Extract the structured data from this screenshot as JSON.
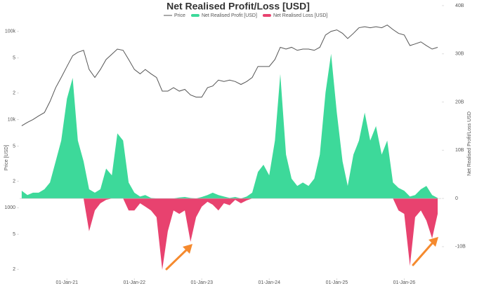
{
  "chart_data": {
    "type": "line-area",
    "title": "Net Realised Profit/Loss [USD]",
    "ylabel": "Price [USD]",
    "y2label": "Net Realised Profit/Loss USD",
    "log_scale_y": true,
    "grid": false,
    "legend": "top",
    "xlim": [
      "2020-04-20",
      "2026-07-20"
    ],
    "xticks": [
      {
        "value": "2021-01-01",
        "label": "01-Jan-21"
      },
      {
        "value": "2022-01-01",
        "label": "01-Jan-22"
      },
      {
        "value": "2023-01-01",
        "label": "01-Jan-23"
      },
      {
        "value": "2024-01-01",
        "label": "01-Jan-24"
      },
      {
        "value": "2025-01-01",
        "label": "01-Jan-25"
      },
      {
        "value": "2026-01-01",
        "label": "01-Jan-26"
      }
    ],
    "ylim": [
      150,
      196000
    ],
    "yticks": [
      {
        "value": 100000,
        "label": "100k"
      },
      {
        "value": 50000,
        "label": "5"
      },
      {
        "value": 20000,
        "label": "2"
      },
      {
        "value": 10000,
        "label": "10k"
      },
      {
        "value": 5000,
        "label": "5"
      },
      {
        "value": 2000,
        "label": "2"
      },
      1000,
      {
        "value": 500,
        "label": "5"
      },
      {
        "value": 200,
        "label": "2"
      }
    ],
    "y2lim": [
      -17,
      40
    ],
    "y2ticks": [
      {
        "value": 40,
        "label": "40B"
      },
      {
        "value": 30,
        "label": "30B"
      },
      {
        "value": 20,
        "label": "20B"
      },
      {
        "value": 10,
        "label": "10B"
      },
      0,
      {
        "value": -10,
        "label": "-10B"
      }
    ],
    "x": [
      "2020-05-01",
      "2020-06-01",
      "2020-07-01",
      "2020-08-01",
      "2020-09-01",
      "2020-10-01",
      "2020-11-01",
      "2020-12-01",
      "2021-01-01",
      "2021-02-01",
      "2021-03-01",
      "2021-04-01",
      "2021-05-01",
      "2021-06-01",
      "2021-07-01",
      "2021-08-01",
      "2021-09-01",
      "2021-10-01",
      "2021-11-01",
      "2021-12-01",
      "2022-01-01",
      "2022-02-01",
      "2022-03-01",
      "2022-04-01",
      "2022-05-01",
      "2022-06-01",
      "2022-07-01",
      "2022-08-01",
      "2022-09-01",
      "2022-10-01",
      "2022-11-01",
      "2022-12-01",
      "2023-01-01",
      "2023-02-01",
      "2023-03-01",
      "2023-04-01",
      "2023-05-01",
      "2023-06-01",
      "2023-07-01",
      "2023-08-01",
      "2023-09-01",
      "2023-10-01",
      "2023-11-01",
      "2023-12-01",
      "2024-01-01",
      "2024-02-01",
      "2024-03-01",
      "2024-04-01",
      "2024-05-01",
      "2024-06-01",
      "2024-07-01",
      "2024-08-01",
      "2024-09-01",
      "2024-10-01",
      "2024-11-01",
      "2024-12-01",
      "2025-01-01",
      "2025-02-01",
      "2025-03-01",
      "2025-04-01",
      "2025-05-01",
      "2025-06-01",
      "2025-07-01",
      "2025-08-01",
      "2025-09-01",
      "2025-10-01",
      "2025-11-01",
      "2025-12-01",
      "2026-01-01",
      "2026-02-01",
      "2026-03-01",
      "2026-04-01",
      "2026-05-01",
      "2026-06-01",
      "2026-07-01"
    ],
    "series": [
      {
        "name": "Price",
        "color": "#555555",
        "axis": "y",
        "kind": "line",
        "values": [
          8500,
          9300,
          10000,
          11000,
          12000,
          16000,
          23000,
          30000,
          40000,
          53000,
          58000,
          61000,
          37000,
          30000,
          37000,
          48000,
          55000,
          63000,
          61000,
          48000,
          37000,
          33000,
          37000,
          33000,
          30000,
          21000,
          21000,
          23000,
          21000,
          22000,
          19000,
          18000,
          18000,
          23000,
          24000,
          28000,
          27000,
          28000,
          27000,
          25000,
          27000,
          30000,
          40000,
          40000,
          40000,
          48000,
          66000,
          63000,
          66000,
          61000,
          63000,
          63000,
          61000,
          66000,
          91000,
          100000,
          104000,
          95000,
          83000,
          95000,
          110000,
          113000,
          110000,
          113000,
          110000,
          118000,
          105000,
          95000,
          91000,
          69000,
          72000,
          76000,
          69000,
          63000,
          66000
        ]
      },
      {
        "name": "Net Realised Profit [USD]",
        "color": "#3dd99a",
        "axis": "y2",
        "kind": "area",
        "values": [
          1.6,
          0.7,
          1.2,
          1.2,
          1.9,
          3.3,
          7.7,
          12,
          20.7,
          25,
          12,
          7.7,
          1.9,
          1.2,
          1.9,
          6.2,
          4.8,
          13.5,
          12,
          3.3,
          1.2,
          0.4,
          0.7,
          0.1,
          0,
          0,
          0,
          0,
          0.2,
          0.3,
          0.1,
          0,
          0.3,
          0.7,
          1.2,
          0.7,
          0.4,
          0.1,
          0.3,
          0,
          0.4,
          1.2,
          5.5,
          7,
          4.8,
          12,
          25.8,
          9.1,
          4.1,
          2.6,
          3.3,
          2.6,
          4.1,
          9.1,
          22,
          30,
          17.8,
          7.7,
          2.6,
          9.1,
          12,
          17.8,
          12,
          15,
          9.1,
          12,
          3.3,
          2.2,
          1.6,
          0.4,
          0.7,
          1.9,
          2.6,
          0.7,
          0.1
        ]
      },
      {
        "name": "Net Realised Loss [USD]",
        "color": "#e8426f",
        "axis": "y2",
        "kind": "area",
        "values": [
          0,
          0,
          0,
          0,
          0,
          0,
          0,
          0,
          0,
          0,
          0,
          0,
          -6.8,
          -2.5,
          -1,
          -0.3,
          0,
          0,
          0,
          -2.5,
          -2.5,
          -1,
          -1.7,
          -2.5,
          -3.9,
          -14.8,
          -6.8,
          -2.5,
          -3.2,
          -2.5,
          -9,
          -3.9,
          -1.7,
          -0.7,
          -1.3,
          -2.5,
          -1,
          -1.4,
          -0.3,
          -1,
          -0.4,
          0,
          0,
          0,
          0,
          0,
          0,
          0,
          0,
          0,
          0,
          0,
          0,
          0,
          0,
          0,
          0,
          0,
          0,
          0,
          0,
          0,
          0,
          0,
          0,
          0,
          0,
          -2.5,
          -3.2,
          -14,
          -3.9,
          -2.5,
          -4.6,
          -8.3,
          -3.2
        ]
      }
    ]
  }
}
